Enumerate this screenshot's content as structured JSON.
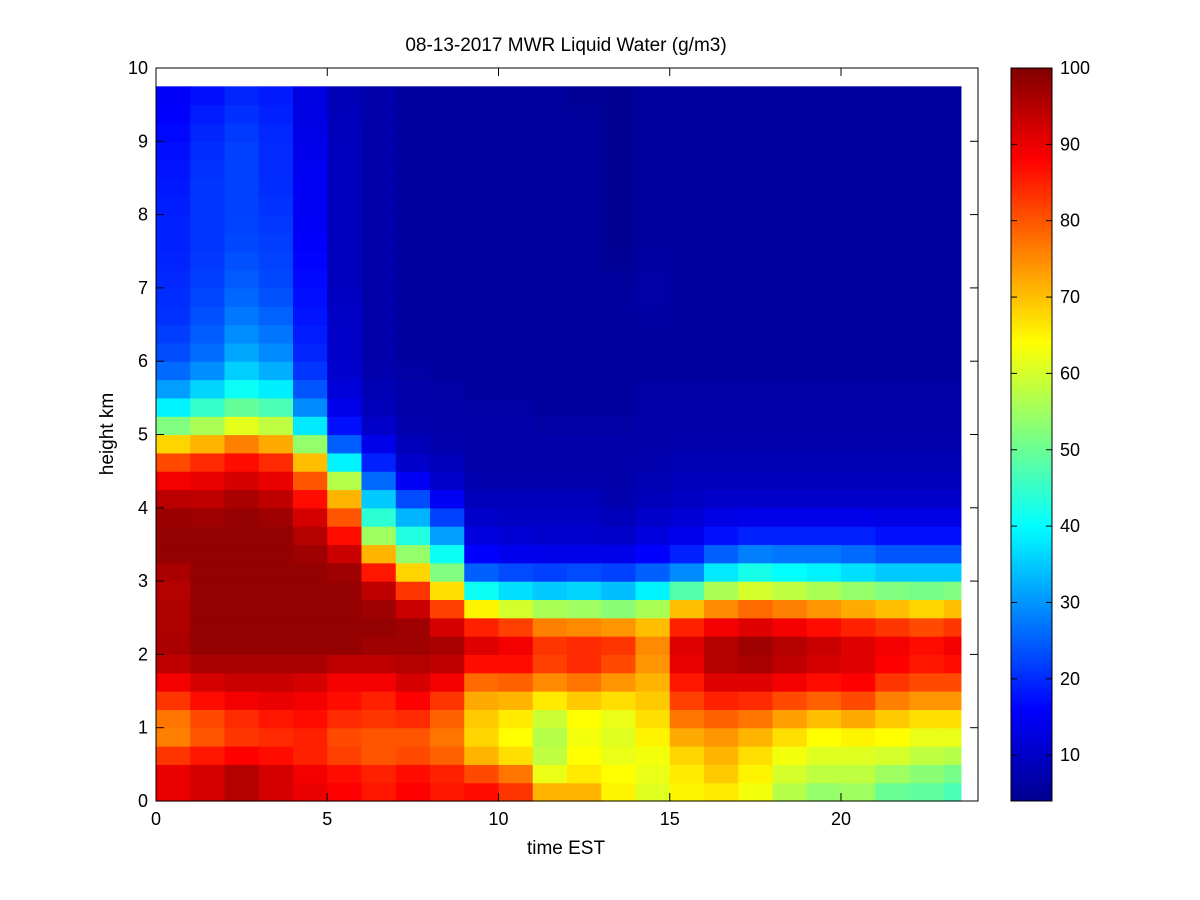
{
  "chart_data": {
    "type": "heatmap",
    "title": "08-13-2017 MWR Liquid Water (g/m3)",
    "xlabel": "time EST",
    "ylabel": "height km",
    "xlim": [
      0,
      24
    ],
    "ylim": [
      0,
      10
    ],
    "xticks": [
      0,
      5,
      10,
      15,
      20
    ],
    "yticks": [
      0,
      1,
      2,
      3,
      4,
      5,
      6,
      7,
      8,
      9,
      10
    ],
    "data_extent": {
      "x": [
        0,
        23.5
      ],
      "y": [
        0,
        9.75
      ]
    },
    "colormap": "jet",
    "colorbar": {
      "min": 4,
      "max": 100,
      "ticks": [
        10,
        20,
        30,
        40,
        50,
        60,
        70,
        80,
        90,
        100
      ]
    },
    "grid": false,
    "times": [
      0.5,
      1.5,
      2.5,
      3.5,
      4.5,
      5.5,
      6.5,
      7.5,
      8.5,
      9.5,
      10.5,
      11.5,
      12.5,
      13.5,
      14.5,
      15.5,
      16.5,
      17.5,
      18.5,
      19.5,
      20.5,
      21.5,
      22.5,
      23.5
    ],
    "profile_heights_km": [
      0,
      0.25,
      0.5,
      0.75,
      1.0,
      1.25,
      1.5,
      1.75,
      2.0,
      2.25,
      2.5,
      2.75,
      3.0,
      3.25,
      3.5,
      3.75,
      4.0,
      4.25,
      4.5,
      4.75,
      5.0,
      5.25,
      5.5,
      5.75,
      6.0,
      6.5,
      7.0,
      7.5,
      8.0,
      8.5,
      9.0,
      9.75
    ],
    "profiles": [
      [
        88,
        92,
        88,
        78,
        74,
        80,
        86,
        92,
        96,
        96,
        95,
        96,
        94,
        98,
        98,
        98,
        97,
        92,
        86,
        76,
        60,
        44,
        34,
        28,
        24,
        21,
        20,
        19,
        19,
        18,
        17,
        15
      ],
      [
        90,
        94,
        90,
        82,
        78,
        84,
        90,
        94,
        98,
        98,
        98,
        98,
        98,
        98,
        98,
        98,
        96,
        92,
        88,
        80,
        62,
        50,
        40,
        32,
        27,
        24,
        22,
        21,
        21,
        21,
        20,
        17
      ],
      [
        92,
        98,
        92,
        84,
        82,
        86,
        92,
        94,
        98,
        98,
        98,
        98,
        98,
        98,
        98,
        98,
        98,
        94,
        90,
        84,
        68,
        55,
        44,
        38,
        33,
        28,
        25,
        23,
        22,
        22,
        22,
        19
      ],
      [
        90,
        94,
        90,
        84,
        84,
        88,
        92,
        94,
        98,
        98,
        98,
        98,
        98,
        98,
        98,
        98,
        96,
        92,
        88,
        80,
        64,
        52,
        42,
        35,
        30,
        26,
        23,
        22,
        21,
        20,
        20,
        18
      ],
      [
        88,
        92,
        86,
        84,
        86,
        88,
        90,
        94,
        98,
        98,
        98,
        98,
        98,
        98,
        96,
        94,
        90,
        84,
        76,
        64,
        44,
        32,
        26,
        22,
        20,
        18,
        17,
        16,
        15,
        15,
        14,
        13
      ],
      [
        86,
        90,
        84,
        80,
        82,
        86,
        88,
        90,
        98,
        98,
        98,
        98,
        98,
        96,
        90,
        84,
        76,
        66,
        48,
        30,
        20,
        15,
        13,
        12,
        11,
        11,
        10,
        10,
        10,
        10,
        10,
        9
      ],
      [
        84,
        88,
        82,
        78,
        82,
        84,
        86,
        92,
        96,
        98,
        98,
        96,
        92,
        80,
        62,
        48,
        40,
        30,
        22,
        16,
        12,
        10,
        9,
        9,
        8,
        8,
        8,
        8,
        8,
        8,
        8,
        8
      ],
      [
        86,
        90,
        84,
        78,
        82,
        86,
        90,
        94,
        96,
        98,
        96,
        90,
        76,
        60,
        48,
        38,
        28,
        18,
        12,
        10,
        9,
        8,
        8,
        8,
        7,
        7,
        7,
        7,
        7,
        7,
        7,
        7
      ],
      [
        84,
        88,
        82,
        76,
        78,
        80,
        86,
        92,
        96,
        96,
        88,
        76,
        58,
        46,
        36,
        26,
        18,
        12,
        10,
        9,
        8,
        8,
        8,
        7,
        7,
        7,
        7,
        7,
        7,
        7,
        7,
        7
      ],
      [
        86,
        88,
        74,
        68,
        68,
        70,
        74,
        82,
        92,
        90,
        80,
        50,
        32,
        18,
        14,
        12,
        10,
        9,
        8,
        8,
        8,
        8,
        7,
        7,
        7,
        7,
        7,
        7,
        7,
        7,
        7,
        7
      ],
      [
        82,
        84,
        70,
        64,
        64,
        68,
        74,
        84,
        90,
        88,
        76,
        44,
        30,
        16,
        13,
        11,
        10,
        9,
        8,
        8,
        8,
        8,
        7,
        7,
        7,
        7,
        7,
        7,
        7,
        7,
        7,
        7
      ],
      [
        76,
        66,
        58,
        58,
        56,
        62,
        70,
        80,
        84,
        82,
        70,
        42,
        28,
        16,
        12,
        11,
        10,
        9,
        8,
        8,
        8,
        7,
        7,
        7,
        7,
        7,
        7,
        7,
        7,
        7,
        7,
        7
      ],
      [
        74,
        68,
        64,
        64,
        62,
        66,
        72,
        82,
        86,
        82,
        68,
        42,
        30,
        16,
        12,
        11,
        10,
        9,
        8,
        8,
        8,
        7,
        7,
        7,
        7,
        7,
        7,
        7,
        7,
        7,
        7,
        6
      ],
      [
        64,
        66,
        62,
        62,
        60,
        64,
        70,
        78,
        84,
        82,
        66,
        40,
        28,
        16,
        12,
        10,
        9,
        8,
        8,
        8,
        8,
        7,
        7,
        7,
        7,
        7,
        7,
        6,
        6,
        6,
        6,
        6
      ],
      [
        60,
        62,
        62,
        64,
        66,
        68,
        70,
        72,
        76,
        74,
        66,
        46,
        32,
        18,
        14,
        12,
        10,
        9,
        9,
        8,
        8,
        8,
        8,
        7,
        7,
        7,
        8,
        7,
        7,
        7,
        7,
        7
      ],
      [
        64,
        66,
        66,
        70,
        74,
        80,
        84,
        88,
        92,
        90,
        80,
        60,
        36,
        22,
        16,
        13,
        11,
        10,
        9,
        9,
        8,
        8,
        8,
        7,
        7,
        7,
        7,
        7,
        7,
        7,
        7,
        7
      ],
      [
        64,
        68,
        70,
        72,
        76,
        82,
        88,
        94,
        96,
        94,
        84,
        66,
        46,
        30,
        20,
        15,
        12,
        10,
        9,
        9,
        8,
        8,
        8,
        7,
        7,
        7,
        7,
        7,
        7,
        7,
        7,
        7
      ],
      [
        62,
        64,
        66,
        68,
        74,
        80,
        88,
        94,
        98,
        96,
        86,
        70,
        50,
        34,
        22,
        16,
        12,
        10,
        9,
        9,
        8,
        8,
        8,
        7,
        7,
        7,
        7,
        7,
        7,
        7,
        7,
        7
      ],
      [
        56,
        58,
        62,
        64,
        70,
        76,
        86,
        92,
        96,
        94,
        84,
        68,
        48,
        32,
        22,
        16,
        12,
        10,
        9,
        9,
        8,
        8,
        8,
        7,
        7,
        7,
        7,
        7,
        7,
        7,
        7,
        7
      ],
      [
        52,
        56,
        60,
        62,
        66,
        74,
        84,
        90,
        94,
        92,
        82,
        66,
        46,
        32,
        22,
        16,
        12,
        10,
        9,
        9,
        8,
        8,
        8,
        7,
        7,
        7,
        7,
        7,
        7,
        7,
        7,
        7
      ],
      [
        54,
        56,
        60,
        62,
        68,
        76,
        86,
        90,
        92,
        90,
        80,
        64,
        44,
        30,
        22,
        16,
        12,
        10,
        9,
        9,
        8,
        8,
        8,
        7,
        7,
        7,
        7,
        7,
        7,
        7,
        7,
        7
      ],
      [
        48,
        52,
        58,
        62,
        66,
        72,
        80,
        86,
        90,
        88,
        78,
        62,
        42,
        28,
        20,
        15,
        12,
        10,
        9,
        9,
        8,
        8,
        8,
        7,
        7,
        7,
        7,
        7,
        7,
        7,
        7,
        7
      ],
      [
        48,
        50,
        56,
        60,
        64,
        70,
        78,
        84,
        88,
        86,
        76,
        60,
        42,
        28,
        20,
        15,
        12,
        10,
        9,
        9,
        8,
        8,
        8,
        7,
        7,
        7,
        7,
        7,
        7,
        7,
        7,
        7
      ],
      [
        46,
        48,
        54,
        60,
        64,
        70,
        78,
        84,
        90,
        88,
        78,
        62,
        42,
        28,
        20,
        15,
        12,
        10,
        9,
        9,
        8,
        8,
        8,
        7,
        7,
        7,
        7,
        7,
        7,
        7,
        7,
        7
      ]
    ]
  }
}
